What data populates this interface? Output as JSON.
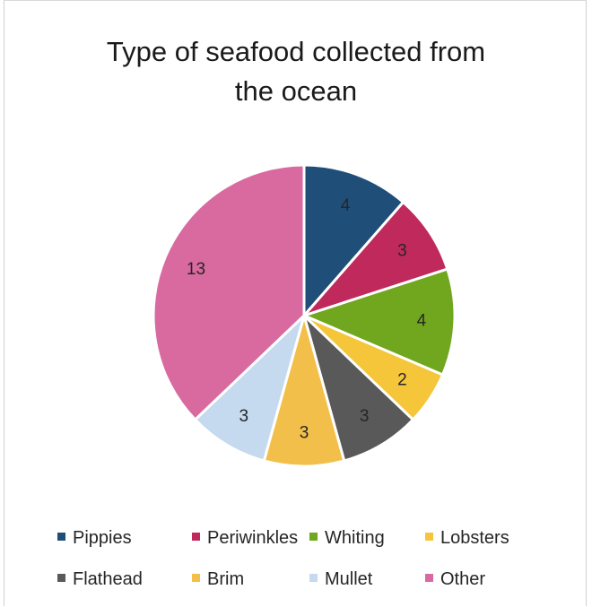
{
  "chart_data": {
    "type": "pie",
    "title_lines": [
      "Type of seafood collected from",
      "the ocean"
    ],
    "categories": [
      "Pippies",
      "Periwinkles",
      "Whiting",
      "Lobsters",
      "Flathead",
      "Brim",
      "Mullet",
      "Other"
    ],
    "values": [
      4,
      3,
      4,
      2,
      3,
      3,
      3,
      13
    ],
    "colors": [
      "#1f4e79",
      "#c0295c",
      "#70a71e",
      "#f5c53a",
      "#595959",
      "#f2c04a",
      "#c5d9ef",
      "#d96aa0"
    ],
    "data_labels_shown": true,
    "legend_position": "bottom",
    "start_angle": "top, clockwise"
  }
}
